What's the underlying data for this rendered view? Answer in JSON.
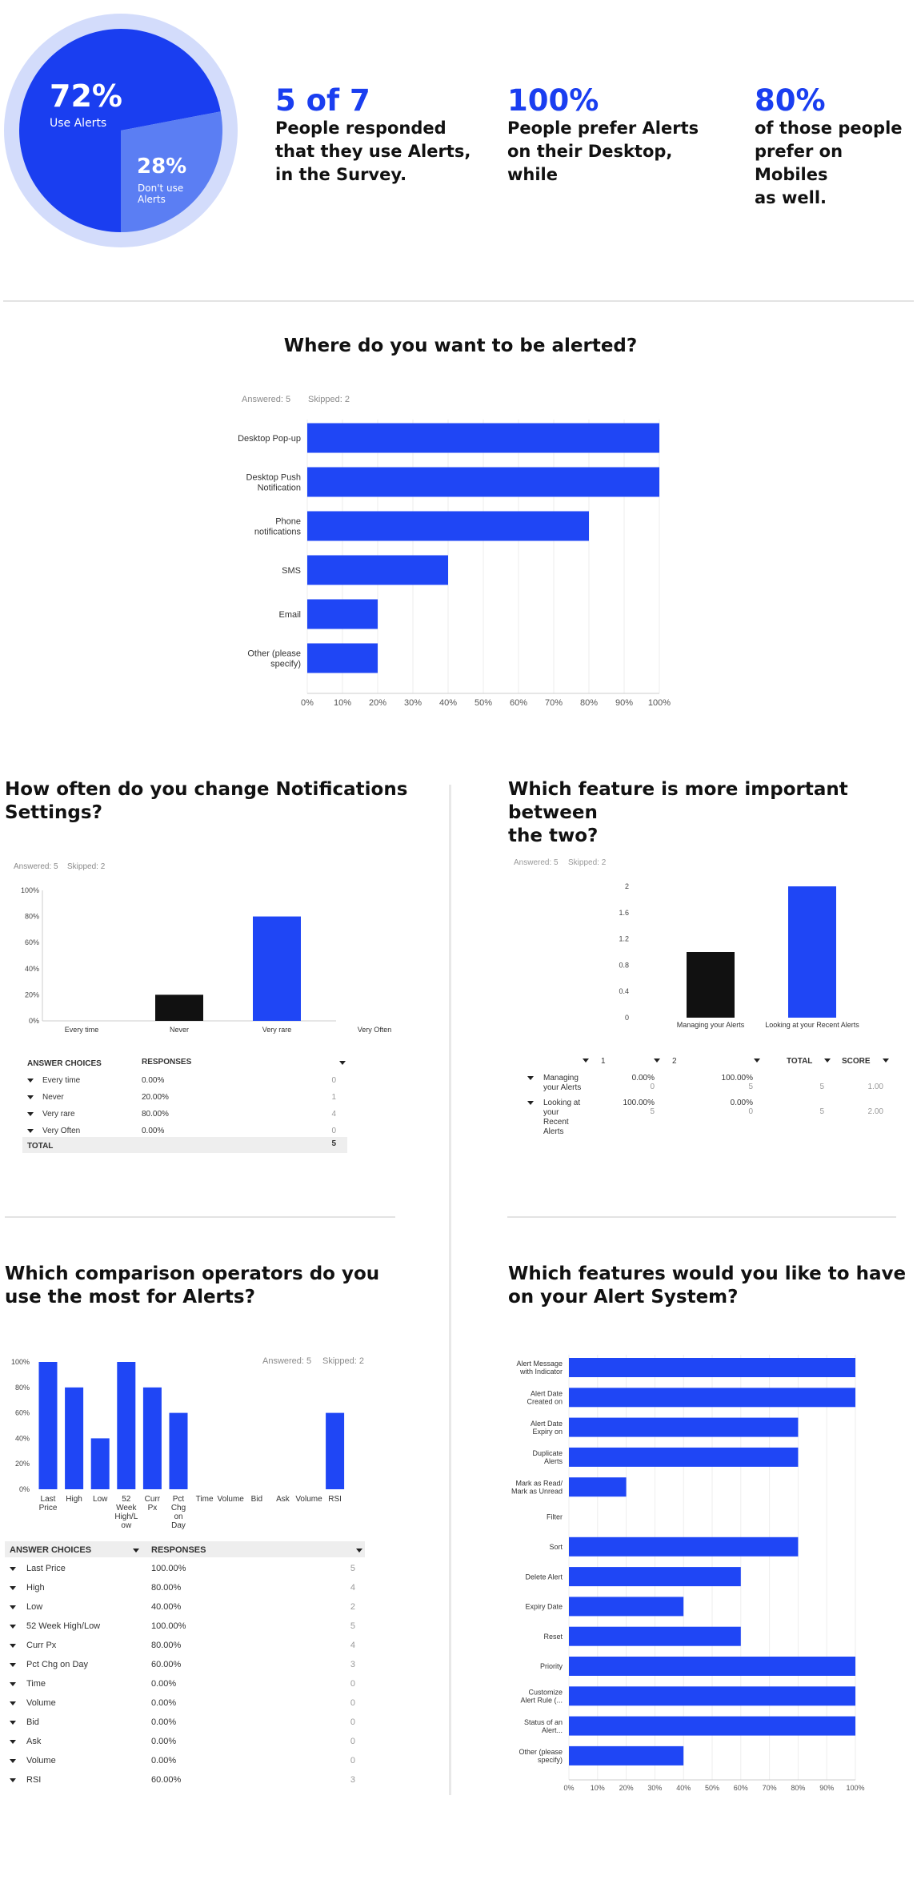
{
  "colors": {
    "accent": "#1a3ef0",
    "bar": "#1f46f5",
    "pie_light": "#d3dcfb",
    "pie_mid": "#5b7ef3",
    "dark_bar": "#111111"
  },
  "summary": {
    "pie": {
      "big_pct": "72%",
      "big_label": "Use Alerts",
      "small_pct": "28%",
      "small_label": "Don't use\nAlerts"
    },
    "stats": [
      {
        "num": "5 of 7",
        "text": "People responded\nthat they use Alerts,\nin the Survey."
      },
      {
        "num": "100%",
        "text": "People prefer Alerts\non their Desktop,\nwhile"
      },
      {
        "num": "80%",
        "text": "of those people\nprefer on Mobiles\nas well."
      }
    ]
  },
  "q1": {
    "title": "Where do you want to be alerted?",
    "answered": "Answered: 5",
    "skipped": "Skipped: 2"
  },
  "q2": {
    "title": "How often do you change Notifications\nSettings?",
    "answered": "Answered: 5",
    "skipped": "Skipped: 2",
    "table": {
      "h1": "ANSWER CHOICES",
      "h2": "RESPONSES",
      "rows": [
        {
          "label": "Every time",
          "pct": "0.00%",
          "n": "0"
        },
        {
          "label": "Never",
          "pct": "20.00%",
          "n": "1"
        },
        {
          "label": "Very rare",
          "pct": "80.00%",
          "n": "4"
        },
        {
          "label": "Very Often",
          "pct": "0.00%",
          "n": "0"
        }
      ],
      "total_label": "TOTAL",
      "total": "5"
    }
  },
  "q3": {
    "title": "Which feature is more important between\nthe two?",
    "answered": "Answered: 5",
    "skipped": "Skipped: 2",
    "table": {
      "headers": [
        "1",
        "2",
        "TOTAL",
        "SCORE"
      ],
      "rows": [
        {
          "label": "Managing\nyour Alerts",
          "c1p": "0.00%",
          "c1n": "0",
          "c2p": "100.00%",
          "c2n": "5",
          "total": "5",
          "score": "1.00"
        },
        {
          "label": "Looking at\nyour\nRecent\nAlerts",
          "c1p": "100.00%",
          "c1n": "5",
          "c2p": "0.00%",
          "c2n": "0",
          "total": "5",
          "score": "2.00"
        }
      ]
    }
  },
  "q4": {
    "title": "Which comparison operators do you\nuse the most for Alerts?",
    "answered": "Answered: 5",
    "skipped": "Skipped: 2",
    "table": {
      "h1": "ANSWER CHOICES",
      "h2": "RESPONSES",
      "rows": [
        {
          "label": "Last Price",
          "pct": "100.00%",
          "n": "5"
        },
        {
          "label": "High",
          "pct": "80.00%",
          "n": "4"
        },
        {
          "label": "Low",
          "pct": "40.00%",
          "n": "2"
        },
        {
          "label": "52 Week High/Low",
          "pct": "100.00%",
          "n": "5"
        },
        {
          "label": "Curr Px",
          "pct": "80.00%",
          "n": "4"
        },
        {
          "label": "Pct Chg on Day",
          "pct": "60.00%",
          "n": "3"
        },
        {
          "label": "Time",
          "pct": "0.00%",
          "n": "0"
        },
        {
          "label": "Volume",
          "pct": "0.00%",
          "n": "0"
        },
        {
          "label": "Bid",
          "pct": "0.00%",
          "n": "0"
        },
        {
          "label": "Ask",
          "pct": "0.00%",
          "n": "0"
        },
        {
          "label": "Volume",
          "pct": "0.00%",
          "n": "0"
        },
        {
          "label": "RSI",
          "pct": "60.00%",
          "n": "3"
        }
      ]
    }
  },
  "q5": {
    "title": "Which features would you like to have\non your Alert System?"
  },
  "chart_data": [
    {
      "type": "pie",
      "categories": [
        "Use Alerts",
        "Don't use Alerts"
      ],
      "values": [
        72,
        28
      ]
    },
    {
      "type": "bar",
      "orientation": "horizontal",
      "title": "Where do you want to be alerted?",
      "categories": [
        "Desktop Pop-up",
        "Desktop Push\nNotification",
        "Phone\nnotifications",
        "SMS",
        "Email",
        "Other (please\nspecify)"
      ],
      "values": [
        100,
        100,
        80,
        40,
        20,
        20
      ],
      "xticks": [
        "0%",
        "10%",
        "20%",
        "30%",
        "40%",
        "50%",
        "60%",
        "70%",
        "80%",
        "90%",
        "100%"
      ],
      "xlim": [
        0,
        100
      ]
    },
    {
      "type": "bar",
      "title": "How often do you change Notifications Settings?",
      "categories": [
        "Every time",
        "Never",
        "Very rare",
        "Very Often"
      ],
      "values": [
        0,
        20,
        80,
        0
      ],
      "yticks": [
        "0%",
        "20%",
        "40%",
        "60%",
        "80%",
        "100%"
      ],
      "ylim": [
        0,
        100
      ]
    },
    {
      "type": "bar",
      "title": "Which feature is more important between the two?",
      "categories": [
        "Managing your Alerts",
        "Looking at your Recent Alerts"
      ],
      "values": [
        1.0,
        2.0
      ],
      "yticks": [
        "0",
        "0.4",
        "0.8",
        "1.2",
        "1.6",
        "2"
      ],
      "ylim": [
        0,
        2
      ]
    },
    {
      "type": "bar",
      "title": "Which comparison operators do you use the most for Alerts?",
      "categories": [
        "Last\nPrice",
        "High",
        "Low",
        "52\nWeek\nHigh/L\now",
        "Curr\nPx",
        "Pct\nChg\non\nDay",
        "Time",
        "Volume",
        "Bid",
        "Ask",
        "Volume",
        "RSI"
      ],
      "values": [
        100,
        80,
        40,
        100,
        80,
        60,
        0,
        0,
        0,
        0,
        0,
        60
      ],
      "yticks": [
        "0%",
        "20%",
        "40%",
        "60%",
        "80%",
        "100%"
      ],
      "ylim": [
        0,
        100
      ]
    },
    {
      "type": "bar",
      "orientation": "horizontal",
      "title": "Which features would you like to have on your Alert System?",
      "categories": [
        "Alert Message\nwith Indicator",
        "Alert Date\nCreated on",
        "Alert Date\nExpiry on",
        "Duplicate\nAlerts",
        "Mark as Read/\nMark as Unread",
        "Filter",
        "Sort",
        "Delete Alert",
        "Expiry Date",
        "Reset",
        "Priority",
        "Customize\nAlert Rule (...",
        "Status of an\nAlert...",
        "Other (please\nspecify)"
      ],
      "values": [
        100,
        100,
        80,
        80,
        20,
        0,
        80,
        60,
        40,
        60,
        100,
        100,
        100,
        40
      ],
      "xticks": [
        "0%",
        "10%",
        "20%",
        "30%",
        "40%",
        "50%",
        "60%",
        "70%",
        "80%",
        "90%",
        "100%"
      ],
      "xlim": [
        0,
        100
      ]
    }
  ]
}
